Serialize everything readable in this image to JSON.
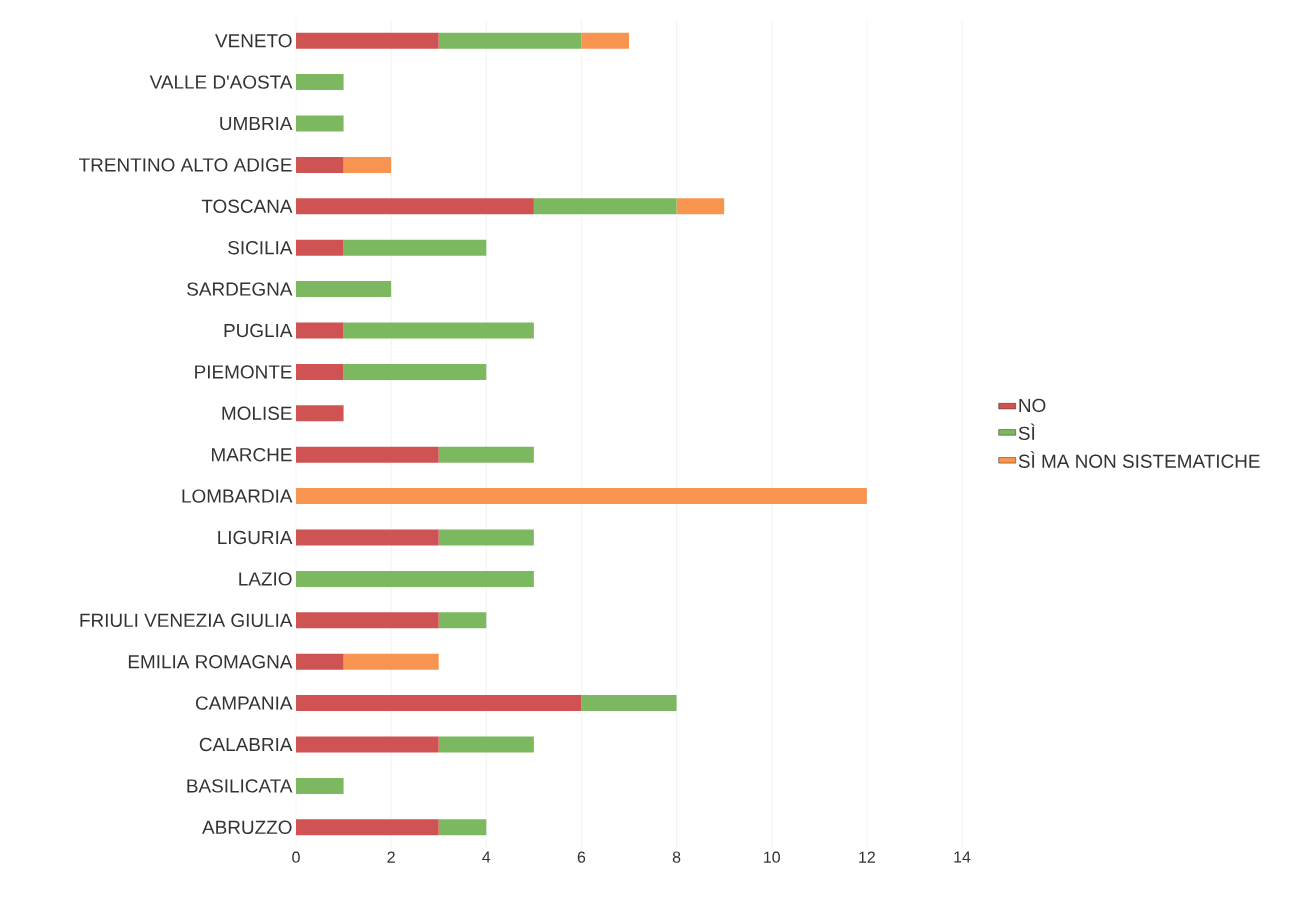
{
  "chart_data": {
    "type": "bar",
    "orientation": "horizontal",
    "stacked": true,
    "categories": [
      "VENETO",
      "VALLE D'AOSTA",
      "UMBRIA",
      "TRENTINO ALTO ADIGE",
      "TOSCANA",
      "SICILIA",
      "SARDEGNA",
      "PUGLIA",
      "PIEMONTE",
      "MOLISE",
      "MARCHE",
      "LOMBARDIA",
      "LIGURIA",
      "LAZIO",
      "FRIULI VENEZIA GIULIA",
      "EMILIA ROMAGNA",
      "CAMPANIA",
      "CALABRIA",
      "BASILICATA",
      "ABRUZZO"
    ],
    "series": [
      {
        "name": "NO",
        "color": "#d05353",
        "values": [
          3,
          0,
          0,
          1,
          5,
          1,
          0,
          1,
          1,
          1,
          3,
          0,
          3,
          0,
          3,
          1,
          6,
          3,
          0,
          3
        ]
      },
      {
        "name": "SÌ",
        "color": "#7cb860",
        "values": [
          3,
          1,
          1,
          0,
          3,
          3,
          2,
          4,
          3,
          0,
          2,
          0,
          2,
          5,
          1,
          0,
          2,
          2,
          1,
          1
        ]
      },
      {
        "name": "SÌ MA NON SISTEMATICHE",
        "color": "#f79550",
        "values": [
          1,
          0,
          0,
          1,
          1,
          0,
          0,
          0,
          0,
          0,
          0,
          12,
          0,
          0,
          0,
          2,
          0,
          0,
          0,
          0
        ]
      }
    ],
    "xlim": [
      0,
      14
    ],
    "xticks": [
      0,
      2,
      4,
      6,
      8,
      10,
      12,
      14
    ],
    "grid": "x",
    "legend": "right"
  }
}
